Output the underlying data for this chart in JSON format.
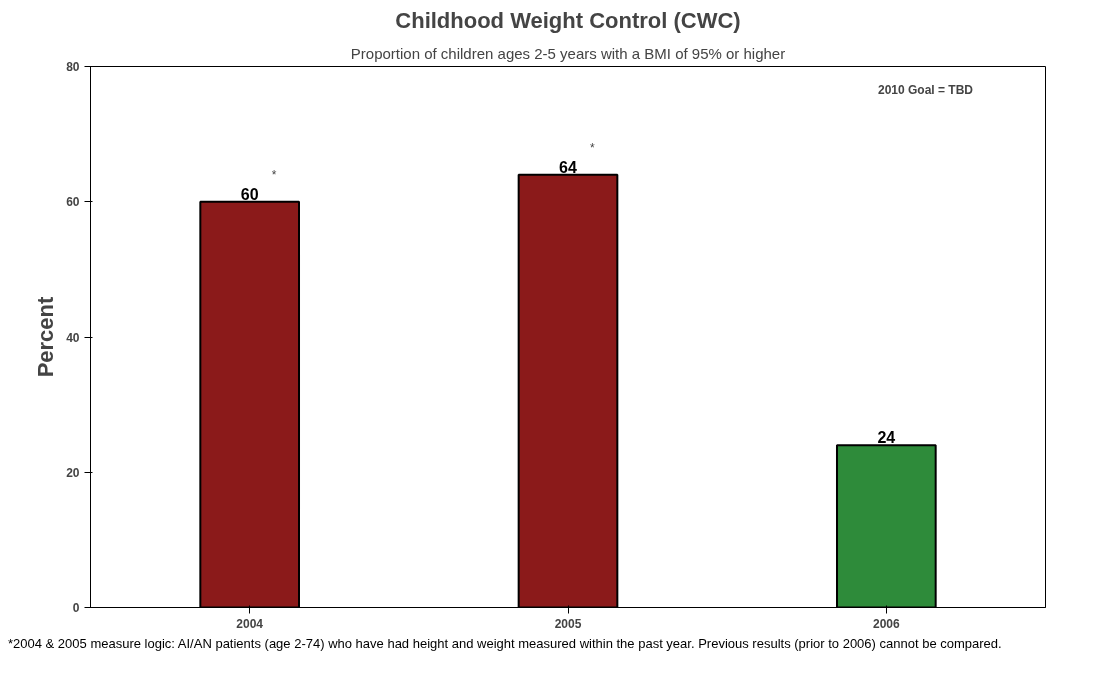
{
  "chart_data": {
    "type": "bar",
    "title": "Childhood Weight Control (CWC)",
    "subtitle": "Proportion of children ages 2-5 years with a BMI of 95% or higher",
    "ylabel": "Percent",
    "categories": [
      "2004",
      "2005",
      "2006"
    ],
    "values": [
      60,
      64,
      24
    ],
    "colors": [
      "#8b1a1a",
      "#8b1a1a",
      "#2e8b3a"
    ],
    "ylim": [
      0,
      80
    ],
    "yticks": [
      0,
      20,
      40,
      60,
      80
    ],
    "grid": false,
    "data_labels": true,
    "annotations": [
      "2010 Goal = TBD",
      "*2004 & 2005 measure logic:  AI/AN patients (age 2-74) who have had height and weight measured within the past year.  Previous results (prior to 2006) cannot be compared.",
      {
        "text": "*",
        "x": "2004",
        "y": 60
      },
      {
        "text": "*",
        "x": "2005",
        "y": 64
      }
    ]
  }
}
